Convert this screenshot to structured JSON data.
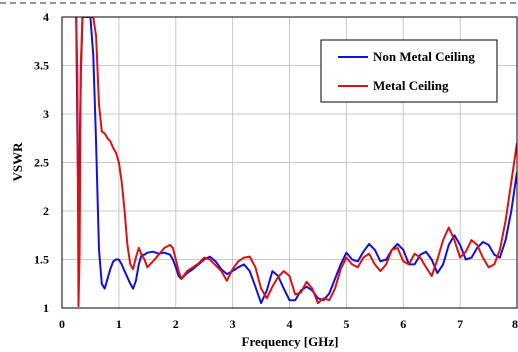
{
  "chart_data": {
    "type": "line",
    "xlabel": "Frequency [GHz]",
    "ylabel": "VSWR",
    "xlim": [
      0,
      8
    ],
    "ylim": [
      1,
      4
    ],
    "x_ticks": [
      "0",
      "1",
      "2",
      "3",
      "4",
      "5",
      "6",
      "7",
      "8"
    ],
    "y_ticks": [
      "1",
      "1.5",
      "2",
      "2.5",
      "3",
      "3.5",
      "4"
    ],
    "grid": true,
    "legend_position": "top-right",
    "series": [
      {
        "name": "Non Metal Ceiling",
        "color": "#1010e0",
        "x": [
          0.25,
          0.27,
          0.29,
          0.31,
          0.33,
          0.36,
          0.5,
          0.55,
          0.6,
          0.65,
          0.7,
          0.75,
          0.8,
          0.85,
          0.9,
          0.95,
          1.0,
          1.05,
          1.1,
          1.2,
          1.25,
          1.3,
          1.35,
          1.4,
          1.45,
          1.5,
          1.6,
          1.7,
          1.8,
          1.9,
          1.95,
          2.0,
          2.05,
          2.1,
          2.2,
          2.3,
          2.4,
          2.5,
          2.6,
          2.7,
          2.8,
          2.9,
          3.0,
          3.1,
          3.2,
          3.3,
          3.4,
          3.5,
          3.6,
          3.7,
          3.8,
          3.9,
          4.0,
          4.1,
          4.2,
          4.3,
          4.4,
          4.5,
          4.6,
          4.7,
          4.8,
          4.9,
          5.0,
          5.1,
          5.2,
          5.3,
          5.4,
          5.5,
          5.6,
          5.7,
          5.8,
          5.9,
          6.0,
          6.1,
          6.2,
          6.3,
          6.4,
          6.5,
          6.6,
          6.7,
          6.8,
          6.9,
          7.0,
          7.1,
          7.2,
          7.3,
          7.4,
          7.5,
          7.6,
          7.7,
          7.8,
          7.9,
          8.0
        ],
        "values": [
          4.0,
          2.8,
          1.9,
          2.6,
          3.4,
          4.0,
          4.0,
          3.6,
          2.7,
          1.6,
          1.25,
          1.2,
          1.3,
          1.4,
          1.48,
          1.5,
          1.5,
          1.45,
          1.38,
          1.25,
          1.2,
          1.28,
          1.45,
          1.55,
          1.55,
          1.57,
          1.58,
          1.56,
          1.57,
          1.55,
          1.5,
          1.42,
          1.33,
          1.3,
          1.36,
          1.4,
          1.45,
          1.5,
          1.53,
          1.48,
          1.4,
          1.35,
          1.38,
          1.42,
          1.45,
          1.38,
          1.22,
          1.05,
          1.18,
          1.38,
          1.33,
          1.2,
          1.08,
          1.08,
          1.18,
          1.22,
          1.18,
          1.1,
          1.08,
          1.15,
          1.3,
          1.45,
          1.57,
          1.5,
          1.48,
          1.58,
          1.66,
          1.6,
          1.48,
          1.5,
          1.6,
          1.66,
          1.6,
          1.45,
          1.45,
          1.55,
          1.58,
          1.5,
          1.36,
          1.45,
          1.65,
          1.75,
          1.65,
          1.5,
          1.52,
          1.62,
          1.68,
          1.65,
          1.55,
          1.52,
          1.7,
          2.0,
          2.4
        ]
      },
      {
        "name": "Metal Ceiling",
        "color": "#e01010",
        "x": [
          0.25,
          0.27,
          0.29,
          0.31,
          0.33,
          0.36,
          0.4,
          0.45,
          0.5,
          0.55,
          0.6,
          0.65,
          0.7,
          0.75,
          0.8,
          0.85,
          0.9,
          0.95,
          1.0,
          1.05,
          1.1,
          1.15,
          1.2,
          1.25,
          1.3,
          1.35,
          1.4,
          1.45,
          1.5,
          1.6,
          1.7,
          1.8,
          1.9,
          1.95,
          2.0,
          2.05,
          2.1,
          2.2,
          2.3,
          2.4,
          2.5,
          2.6,
          2.7,
          2.8,
          2.9,
          3.0,
          3.1,
          3.2,
          3.3,
          3.4,
          3.5,
          3.6,
          3.7,
          3.8,
          3.9,
          4.0,
          4.1,
          4.2,
          4.3,
          4.4,
          4.5,
          4.6,
          4.7,
          4.8,
          4.9,
          5.0,
          5.1,
          5.2,
          5.3,
          5.4,
          5.5,
          5.6,
          5.7,
          5.8,
          5.9,
          6.0,
          6.1,
          6.2,
          6.3,
          6.4,
          6.5,
          6.6,
          6.7,
          6.8,
          6.9,
          7.0,
          7.1,
          7.2,
          7.3,
          7.4,
          7.5,
          7.6,
          7.7,
          7.8,
          7.9,
          8.0
        ],
        "values": [
          4.0,
          3.4,
          1.02,
          1.6,
          3.5,
          4.0,
          4.0,
          4.0,
          4.0,
          4.0,
          3.8,
          3.1,
          2.82,
          2.8,
          2.75,
          2.72,
          2.65,
          2.6,
          2.5,
          2.3,
          2.0,
          1.65,
          1.45,
          1.4,
          1.52,
          1.62,
          1.55,
          1.5,
          1.42,
          1.48,
          1.55,
          1.62,
          1.65,
          1.62,
          1.5,
          1.38,
          1.3,
          1.38,
          1.42,
          1.46,
          1.52,
          1.5,
          1.44,
          1.38,
          1.28,
          1.4,
          1.48,
          1.52,
          1.53,
          1.42,
          1.2,
          1.1,
          1.22,
          1.32,
          1.38,
          1.33,
          1.14,
          1.16,
          1.27,
          1.2,
          1.05,
          1.1,
          1.08,
          1.2,
          1.4,
          1.52,
          1.45,
          1.42,
          1.52,
          1.56,
          1.45,
          1.38,
          1.45,
          1.6,
          1.62,
          1.48,
          1.45,
          1.56,
          1.52,
          1.42,
          1.33,
          1.5,
          1.7,
          1.83,
          1.7,
          1.52,
          1.58,
          1.7,
          1.65,
          1.52,
          1.42,
          1.45,
          1.6,
          1.9,
          2.3,
          2.7
        ]
      }
    ]
  }
}
